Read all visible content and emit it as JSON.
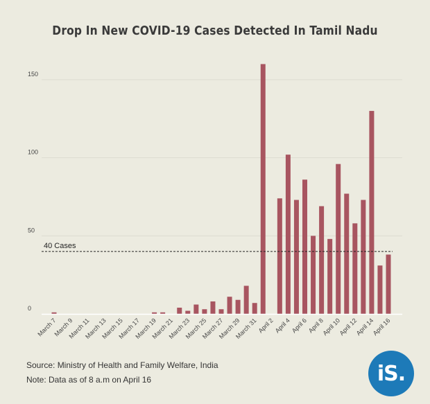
{
  "chart_data": {
    "type": "bar",
    "title": "Drop In New COVID-19 Cases Detected In Tamil Nadu",
    "xlabel": "",
    "ylabel": "",
    "ylim": [
      0,
      160
    ],
    "y_ticks": [
      0,
      50,
      100,
      150
    ],
    "bar_color": "#a85560",
    "grid": "horizontal",
    "categories": [
      "March 7",
      "March 8",
      "March 9",
      "March 10",
      "March 11",
      "March 12",
      "March 13",
      "March 14",
      "March 15",
      "March 16",
      "March 17",
      "March 18",
      "March 19",
      "March 20",
      "March 21",
      "March 22",
      "March 23",
      "March 24",
      "March 25",
      "March 26",
      "March 27",
      "March 28",
      "March 29",
      "March 30",
      "March 31",
      "April 1",
      "April 2",
      "April 3",
      "April 4",
      "April 5",
      "April 6",
      "April 7",
      "April 8",
      "April 9",
      "April 10",
      "April 11",
      "April 12",
      "April 13",
      "April 14",
      "April 15",
      "April 16"
    ],
    "labeled_categories": [
      "March 7",
      "March 9",
      "March 11",
      "March 13",
      "March 15",
      "March 17",
      "March 19",
      "March 21",
      "March 23",
      "March 25",
      "March 27",
      "March 29",
      "March 31",
      "April 2",
      "April 4",
      "April 6",
      "April 8",
      "April 10",
      "April 12",
      "April 14",
      "April 16"
    ],
    "values": [
      1,
      0,
      0,
      0,
      0,
      0,
      0,
      0,
      0,
      0,
      0,
      0,
      1,
      1,
      0,
      4,
      2,
      6,
      3,
      8,
      3,
      11,
      9,
      18,
      7,
      160,
      0,
      74,
      102,
      73,
      86,
      50,
      69,
      48,
      96,
      77,
      58,
      73,
      130,
      31,
      38
    ],
    "reference_line": {
      "value": 40,
      "label": "40 Cases"
    }
  },
  "footer": {
    "source": "Source: Ministry of Health and Family Welfare, India",
    "note": "Note: Data as of 8 a.m on April 16"
  },
  "logo": {
    "text": "iS.",
    "color": "#1d7ab8"
  }
}
